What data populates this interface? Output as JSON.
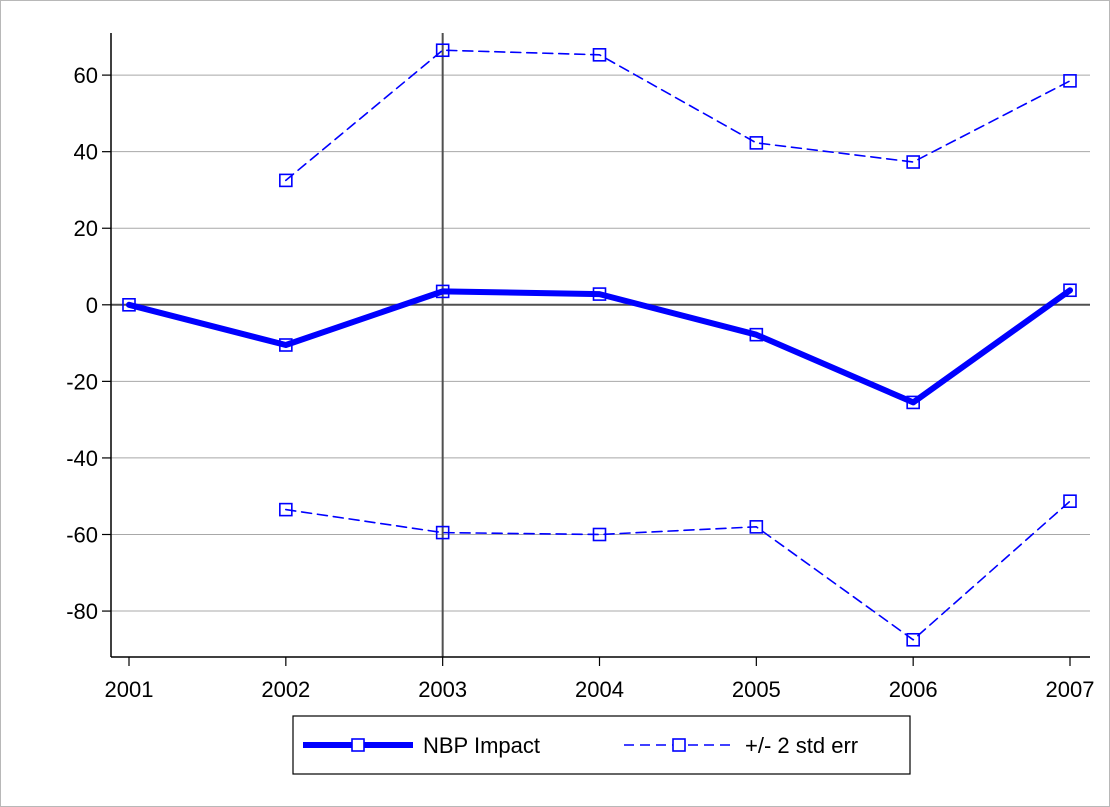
{
  "chart_data": {
    "type": "line",
    "title": "",
    "xlabel": "",
    "ylabel": "",
    "x": [
      2001,
      2002,
      2003,
      2004,
      2005,
      2006,
      2007
    ],
    "x_ticks": [
      "2001",
      "2002",
      "2003",
      "2004",
      "2005",
      "2006",
      "2007"
    ],
    "y_ticks": [
      60,
      40,
      20,
      0,
      -20,
      -40,
      -60,
      -80
    ],
    "y_tick_labels": [
      "60",
      "40",
      "20",
      "0",
      "-20",
      "-40",
      "-60",
      "-80"
    ],
    "ylim": [
      -92,
      71
    ],
    "xlim": [
      2001,
      2007
    ],
    "grid": "horizontal",
    "reference_lines": {
      "y": 0,
      "x": 2003
    },
    "legend_position": "bottom",
    "color": "#0000ff",
    "series": [
      {
        "name": "NBP Impact",
        "style": "solid-thick",
        "values": [
          0,
          -10.5,
          3.5,
          2.8,
          -7.8,
          -25.5,
          3.8
        ]
      },
      {
        "name": "+/- 2 std err",
        "style": "dashed",
        "values": [
          null,
          32.5,
          66.5,
          65.3,
          42.3,
          37.3,
          58.5
        ]
      },
      {
        "name": "",
        "style": "dashed",
        "values": [
          null,
          -53.5,
          -59.5,
          -60,
          -58,
          -87.5,
          -51.3
        ]
      }
    ]
  }
}
